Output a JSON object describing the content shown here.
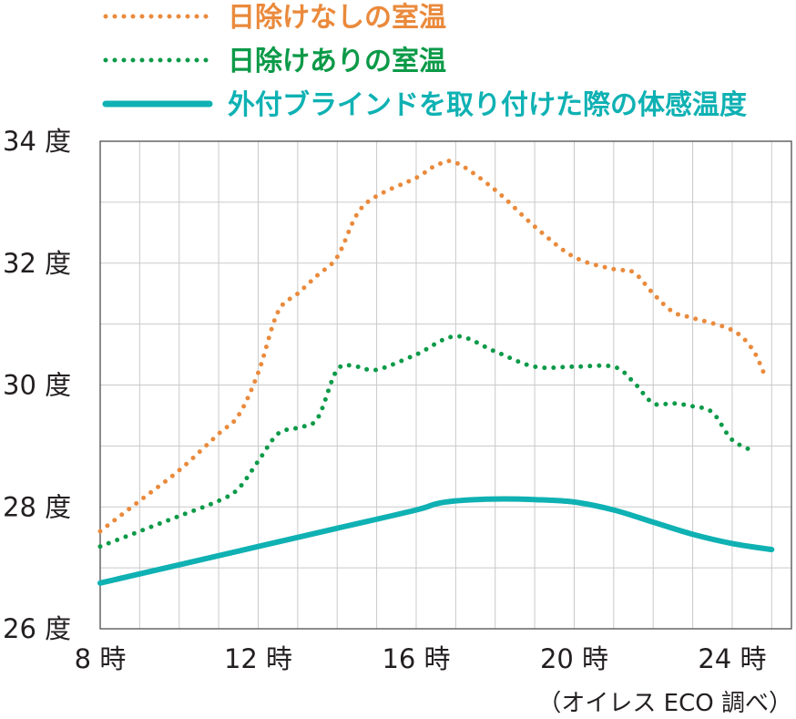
{
  "chart_data": {
    "type": "line",
    "x_unit": "時",
    "y_unit": "度",
    "xlim": [
      8,
      25.5
    ],
    "ylim": [
      26,
      34
    ],
    "x_ticks": [
      {
        "value": 8,
        "label": "8 時"
      },
      {
        "value": 12,
        "label": "12 時"
      },
      {
        "value": 16,
        "label": "16 時"
      },
      {
        "value": 20,
        "label": "20 時"
      },
      {
        "value": 24,
        "label": "24 時"
      }
    ],
    "y_ticks": [
      {
        "value": 26,
        "label": "26 度"
      },
      {
        "value": 28,
        "label": "28 度"
      },
      {
        "value": 30,
        "label": "30 度"
      },
      {
        "value": 32,
        "label": "32 度"
      },
      {
        "value": 34,
        "label": "34 度"
      }
    ],
    "grid": true,
    "legend_position": "top",
    "series": [
      {
        "name": "日除けなしの室温",
        "style": "dotted",
        "color": "#ea8a3c",
        "x": [
          8,
          9,
          10,
          11,
          11.5,
          12,
          12.5,
          13,
          13.5,
          14,
          14.5,
          15,
          16,
          16.5,
          17,
          18,
          19,
          20,
          21,
          21.5,
          22,
          22.5,
          23,
          24,
          24.5,
          24.8
        ],
        "y": [
          27.6,
          28.1,
          28.6,
          29.2,
          29.5,
          30.2,
          31.2,
          31.5,
          31.8,
          32.1,
          32.8,
          33.1,
          33.4,
          33.6,
          33.65,
          33.2,
          32.6,
          32.1,
          31.9,
          31.85,
          31.5,
          31.2,
          31.1,
          30.9,
          30.6,
          30.2
        ]
      },
      {
        "name": "日除けありの室温",
        "style": "dotted",
        "color": "#0c9a48",
        "x": [
          8,
          9,
          10,
          11,
          11.5,
          12,
          12.5,
          13,
          13.5,
          14,
          14.5,
          15,
          16,
          17,
          18,
          19,
          20,
          21,
          21.5,
          22,
          22.5,
          23,
          23.5,
          24,
          24.6
        ],
        "y": [
          27.35,
          27.6,
          27.85,
          28.1,
          28.3,
          28.75,
          29.2,
          29.3,
          29.45,
          30.25,
          30.3,
          30.25,
          30.5,
          30.8,
          30.55,
          30.3,
          30.3,
          30.3,
          30.05,
          29.7,
          29.7,
          29.65,
          29.55,
          29.1,
          28.9
        ]
      },
      {
        "name": "外付ブラインドを取り付けた際の体感温度",
        "style": "solid",
        "color": "#0fb1b3",
        "x": [
          8,
          10,
          12,
          14,
          16,
          16.5,
          17,
          18,
          19,
          20,
          21,
          22,
          23,
          24,
          25
        ],
        "y": [
          26.75,
          27.05,
          27.35,
          27.65,
          27.95,
          28.05,
          28.1,
          28.13,
          28.12,
          28.08,
          27.95,
          27.75,
          27.55,
          27.4,
          27.3
        ]
      }
    ],
    "source_note": "（オイレス ECO 調べ）"
  }
}
